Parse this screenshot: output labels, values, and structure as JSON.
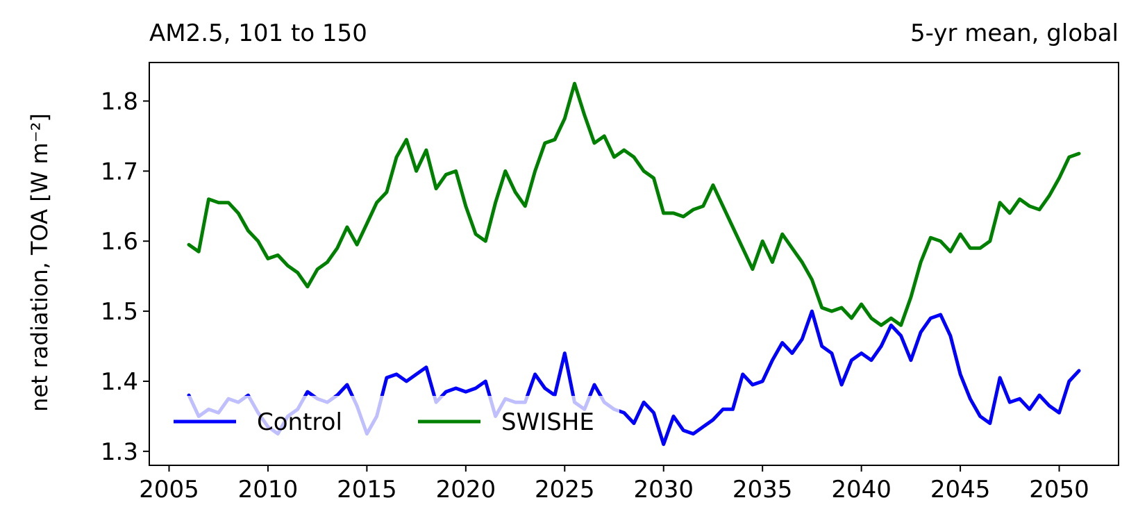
{
  "header": {
    "left_title": "AM2.5, 101 to 150",
    "right_title": "5-yr mean, global"
  },
  "chart_data": {
    "type": "line",
    "title": "AM2.5, 101 to 150",
    "subtitle": "5-yr mean, global",
    "xlabel": "",
    "ylabel": "net radiation, TOA [W m⁻²]",
    "xlim": [
      2004,
      2053
    ],
    "ylim": [
      1.28,
      1.855
    ],
    "xticks": [
      2005,
      2010,
      2015,
      2020,
      2025,
      2030,
      2035,
      2040,
      2045,
      2050
    ],
    "yticks": [
      1.3,
      1.4,
      1.5,
      1.6,
      1.7,
      1.8
    ],
    "grid": false,
    "legend": {
      "placement": "lower-left",
      "columns": 2
    },
    "series": [
      {
        "name": "Control",
        "color": "#0000ff",
        "x": [
          2006.0,
          2006.5,
          2007.0,
          2007.5,
          2008.0,
          2008.5,
          2009.0,
          2009.5,
          2010.0,
          2010.5,
          2011.0,
          2011.5,
          2012.0,
          2012.5,
          2013.0,
          2013.5,
          2014.0,
          2014.5,
          2015.0,
          2015.5,
          2016.0,
          2016.5,
          2017.0,
          2017.5,
          2018.0,
          2018.5,
          2019.0,
          2019.5,
          2020.0,
          2020.5,
          2021.0,
          2021.5,
          2022.0,
          2022.5,
          2023.0,
          2023.5,
          2024.0,
          2024.5,
          2025.0,
          2025.5,
          2026.0,
          2026.5,
          2027.0,
          2027.5,
          2028.0,
          2028.5,
          2029.0,
          2029.5,
          2030.0,
          2030.5,
          2031.0,
          2031.5,
          2032.0,
          2032.5,
          2033.0,
          2033.5,
          2034.0,
          2034.5,
          2035.0,
          2035.5,
          2036.0,
          2036.5,
          2037.0,
          2037.5,
          2038.0,
          2038.5,
          2039.0,
          2039.5,
          2040.0,
          2040.5,
          2041.0,
          2041.5,
          2042.0,
          2042.5,
          2043.0,
          2043.5,
          2044.0,
          2044.5,
          2045.0,
          2045.5,
          2046.0,
          2046.5,
          2047.0,
          2047.5,
          2048.0,
          2048.5,
          2049.0,
          2049.5,
          2050.0,
          2050.5,
          2051.0
        ],
        "y": [
          1.38,
          1.35,
          1.36,
          1.355,
          1.375,
          1.37,
          1.38,
          1.355,
          1.335,
          1.325,
          1.35,
          1.36,
          1.385,
          1.375,
          1.37,
          1.38,
          1.395,
          1.365,
          1.325,
          1.35,
          1.405,
          1.41,
          1.4,
          1.41,
          1.42,
          1.37,
          1.385,
          1.39,
          1.385,
          1.39,
          1.4,
          1.35,
          1.375,
          1.37,
          1.37,
          1.41,
          1.39,
          1.38,
          1.44,
          1.37,
          1.36,
          1.395,
          1.37,
          1.36,
          1.355,
          1.34,
          1.37,
          1.355,
          1.31,
          1.35,
          1.33,
          1.325,
          1.335,
          1.345,
          1.36,
          1.36,
          1.41,
          1.395,
          1.4,
          1.43,
          1.455,
          1.44,
          1.46,
          1.5,
          1.45,
          1.44,
          1.395,
          1.43,
          1.44,
          1.43,
          1.45,
          1.48,
          1.465,
          1.43,
          1.47,
          1.49,
          1.495,
          1.465,
          1.41,
          1.375,
          1.35,
          1.34,
          1.405,
          1.37,
          1.375,
          1.36,
          1.38,
          1.365,
          1.355,
          1.4,
          1.415
        ]
      },
      {
        "name": "SWISHE",
        "color": "#008000",
        "x": [
          2006.0,
          2006.5,
          2007.0,
          2007.5,
          2008.0,
          2008.5,
          2009.0,
          2009.5,
          2010.0,
          2010.5,
          2011.0,
          2011.5,
          2012.0,
          2012.5,
          2013.0,
          2013.5,
          2014.0,
          2014.5,
          2015.0,
          2015.5,
          2016.0,
          2016.5,
          2017.0,
          2017.5,
          2018.0,
          2018.5,
          2019.0,
          2019.5,
          2020.0,
          2020.5,
          2021.0,
          2021.5,
          2022.0,
          2022.5,
          2023.0,
          2023.5,
          2024.0,
          2024.5,
          2025.0,
          2025.5,
          2026.0,
          2026.5,
          2027.0,
          2027.5,
          2028.0,
          2028.5,
          2029.0,
          2029.5,
          2030.0,
          2030.5,
          2031.0,
          2031.5,
          2032.0,
          2032.5,
          2033.0,
          2033.5,
          2034.0,
          2034.5,
          2035.0,
          2035.5,
          2036.0,
          2036.5,
          2037.0,
          2037.5,
          2038.0,
          2038.5,
          2039.0,
          2039.5,
          2040.0,
          2040.5,
          2041.0,
          2041.5,
          2042.0,
          2042.5,
          2043.0,
          2043.5,
          2044.0,
          2044.5,
          2045.0,
          2045.5,
          2046.0,
          2046.5,
          2047.0,
          2047.5,
          2048.0,
          2048.5,
          2049.0,
          2049.5,
          2050.0,
          2050.5,
          2051.0
        ],
        "y": [
          1.595,
          1.585,
          1.66,
          1.655,
          1.655,
          1.64,
          1.615,
          1.6,
          1.575,
          1.58,
          1.565,
          1.555,
          1.535,
          1.56,
          1.57,
          1.59,
          1.62,
          1.595,
          1.625,
          1.655,
          1.67,
          1.72,
          1.745,
          1.7,
          1.73,
          1.675,
          1.695,
          1.7,
          1.65,
          1.61,
          1.6,
          1.655,
          1.7,
          1.67,
          1.65,
          1.7,
          1.74,
          1.745,
          1.775,
          1.825,
          1.78,
          1.74,
          1.75,
          1.72,
          1.73,
          1.72,
          1.7,
          1.69,
          1.64,
          1.64,
          1.635,
          1.645,
          1.65,
          1.68,
          1.65,
          1.62,
          1.59,
          1.56,
          1.6,
          1.57,
          1.61,
          1.59,
          1.57,
          1.545,
          1.505,
          1.5,
          1.505,
          1.49,
          1.51,
          1.49,
          1.48,
          1.49,
          1.48,
          1.52,
          1.57,
          1.605,
          1.6,
          1.585,
          1.61,
          1.59,
          1.59,
          1.6,
          1.655,
          1.64,
          1.66,
          1.65,
          1.645,
          1.665,
          1.69,
          1.72,
          1.725
        ]
      }
    ]
  }
}
